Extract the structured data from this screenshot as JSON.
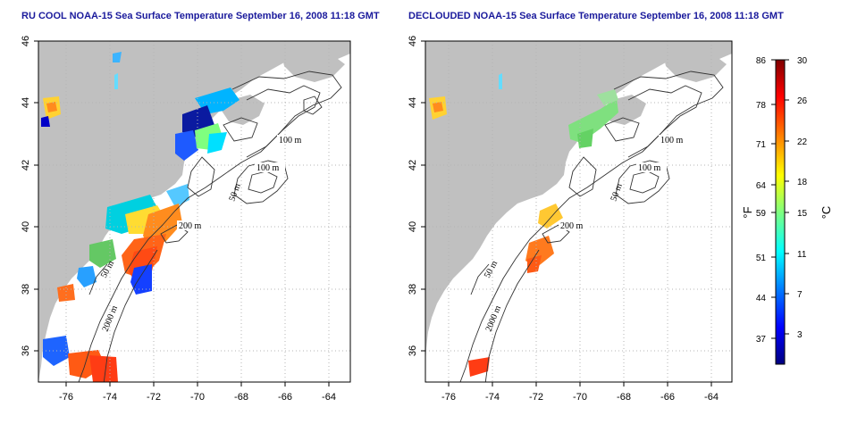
{
  "panels": [
    {
      "title": "RU COOL NOAA-15 Sea Surface Temperature September 16, 2008 11:18 GMT"
    },
    {
      "title": "DECLOUDED NOAA-15 Sea Surface Temperature September 16, 2008 11:18 GMT"
    }
  ],
  "axes": {
    "lon_ticks": [
      "-76",
      "-74",
      "-72",
      "-70",
      "-68",
      "-66",
      "-64"
    ],
    "lat_ticks": [
      "36",
      "38",
      "40",
      "42",
      "44",
      "46"
    ],
    "lon_range": [
      -77.2,
      -63.0
    ],
    "lat_range": [
      35.0,
      46.0
    ]
  },
  "contour_labels": [
    "100 m",
    "100 m",
    "50 m",
    "200 m",
    "50 m",
    "2000 m"
  ],
  "colorbar": {
    "fahrenheit_ticks": [
      "86",
      "78",
      "71",
      "64",
      "59",
      "51",
      "44",
      "37"
    ],
    "celsius_ticks": [
      "30",
      "26",
      "22",
      "18",
      "15",
      "11",
      "7",
      "3"
    ],
    "fahrenheit_unit": "°F",
    "celsius_unit": "°C",
    "range_c": [
      0,
      30
    ],
    "colors": [
      "#00007f",
      "#0000ff",
      "#007fff",
      "#00ffff",
      "#7fff7f",
      "#ffff00",
      "#ff7f00",
      "#ff0000",
      "#7f0000"
    ]
  },
  "colors": {
    "land": "#c0c0c0",
    "title": "#1a1a9c",
    "grid": "#b4b4b4",
    "contour": "#333333"
  }
}
